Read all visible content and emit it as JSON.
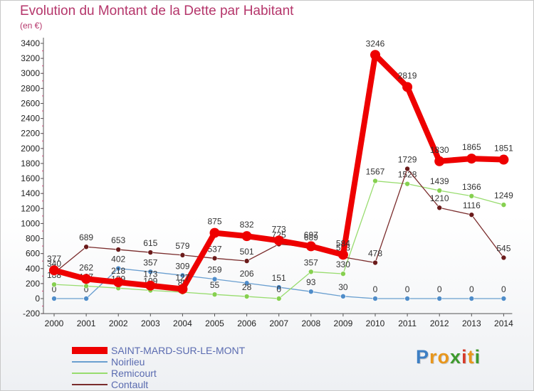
{
  "title": "Evolution du Montant de la Dette par Habitant",
  "subtitle": "(en €)",
  "logo": {
    "letters": [
      {
        "ch": "P",
        "color": "#3d7fc4"
      },
      {
        "ch": "r",
        "color": "#e8961c"
      },
      {
        "ch": "o",
        "color": "#e8961c"
      },
      {
        "ch": "x",
        "color": "#3d9a2d"
      },
      {
        "ch": "i",
        "color": "#d63b2a"
      },
      {
        "ch": "t",
        "color": "#e8961c"
      },
      {
        "ch": "i",
        "color": "#3d9a2d"
      }
    ]
  },
  "chart_data": {
    "type": "line",
    "categories": [
      "2000",
      "2001",
      "2002",
      "2003",
      "2004",
      "2005",
      "2006",
      "2007",
      "2008",
      "2009",
      "2010",
      "2011",
      "2012",
      "2013",
      "2014"
    ],
    "ylim": [
      -200,
      3400
    ],
    "yticks": [
      -200,
      0,
      200,
      400,
      600,
      800,
      1000,
      1200,
      1400,
      1600,
      1800,
      2000,
      2200,
      2400,
      2600,
      2800,
      3000,
      3200,
      3400
    ],
    "grid": false,
    "legend_position": "bottom-left",
    "series": [
      {
        "name": "Noirlieu",
        "color": "#6a9fd0",
        "width": 1.3,
        "marker": 3.5,
        "markerFill": "#4f8cc9",
        "values": [
          0,
          0,
          402,
          357,
          309,
          259,
          206,
          151,
          93,
          30,
          0,
          0,
          0,
          0,
          0
        ]
      },
      {
        "name": "Remicourt",
        "color": "#98dc6e",
        "width": 1.3,
        "marker": 3.5,
        "markerFill": "#86d050",
        "values": [
          188,
          167,
          139,
          109,
          85,
          55,
          28,
          0,
          357,
          330,
          1567,
          1528,
          1439,
          1366,
          1249
        ]
      },
      {
        "name": "Contault",
        "color": "#7a2c2c",
        "width": 1.3,
        "marker": 3.5,
        "markerFill": "#6b1b1b",
        "values": [
          340,
          689,
          653,
          615,
          579,
          537,
          501,
          725,
          689,
          553,
          478,
          1729,
          1210,
          1116,
          545
        ]
      },
      {
        "name": "SAINT-MARD-SUR-LE-MONT",
        "color": "#ee0000",
        "width": 8,
        "marker": 7,
        "markerFill": "#ee0000",
        "values": [
          377,
          262,
          218,
          173,
          127,
          875,
          832,
          773,
          697,
          584,
          3246,
          2819,
          1830,
          1865,
          1851
        ]
      }
    ],
    "legend_order": [
      "SAINT-MARD-SUR-LE-MONT",
      "Noirlieu",
      "Remicourt",
      "Contault"
    ],
    "annotations": []
  }
}
